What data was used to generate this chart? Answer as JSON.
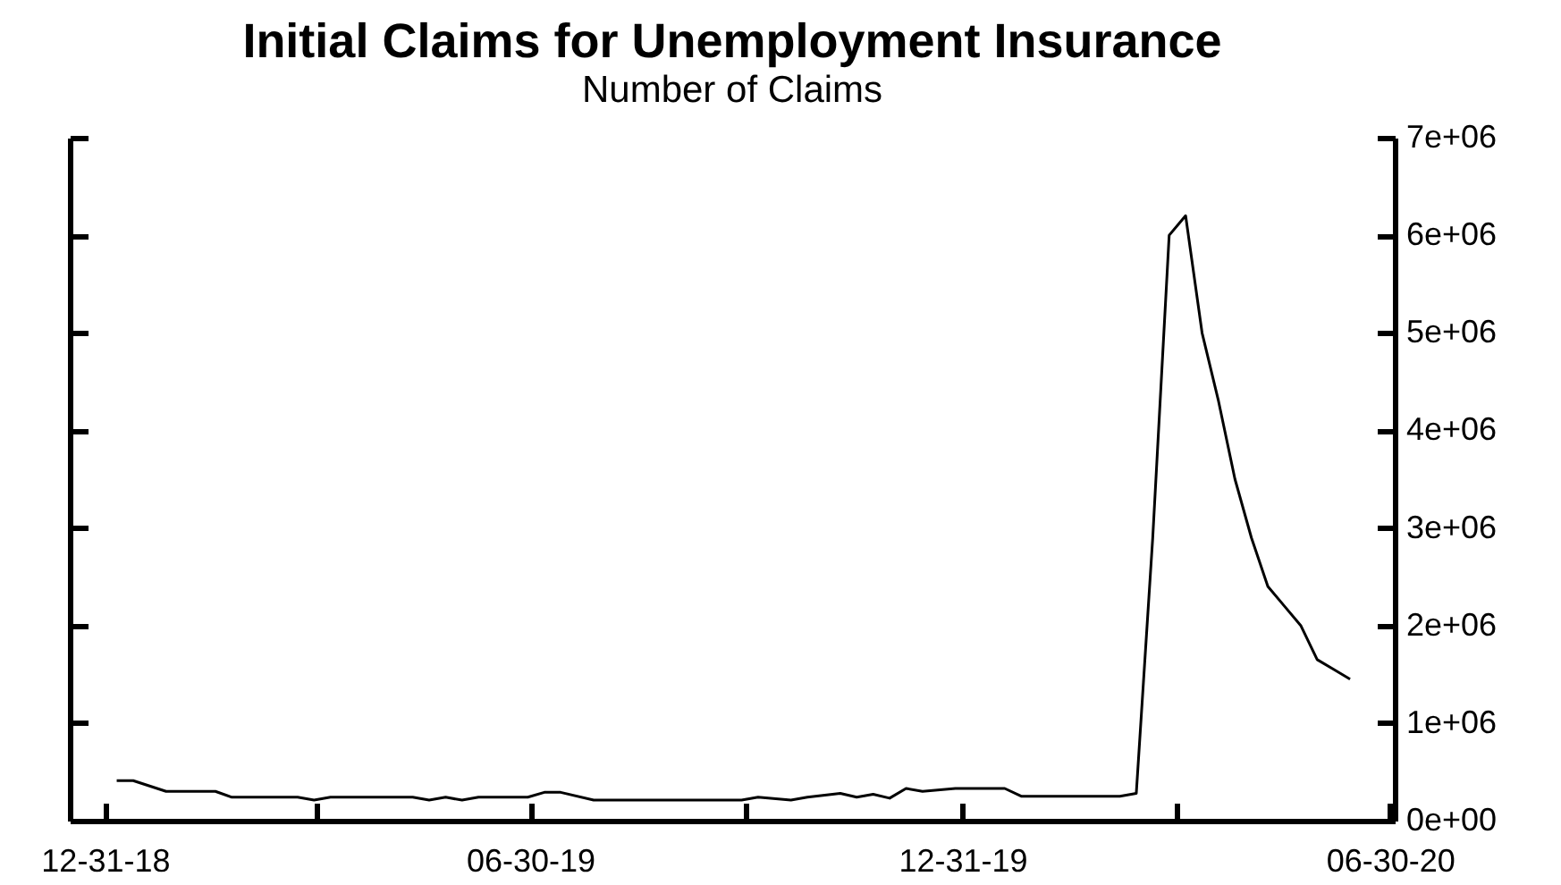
{
  "chart_data": {
    "type": "line",
    "title": "Initial Claims for Unemployment Insurance",
    "subtitle": "Number of Claims",
    "x": [
      "2019-01-05",
      "2019-01-12",
      "2019-01-26",
      "2019-02-16",
      "2019-02-23",
      "2019-03-23",
      "2019-03-30",
      "2019-04-06",
      "2019-05-11",
      "2019-05-18",
      "2019-05-25",
      "2019-06-01",
      "2019-06-08",
      "2019-06-29",
      "2019-07-06",
      "2019-07-13",
      "2019-07-27",
      "2019-09-28",
      "2019-10-05",
      "2019-10-19",
      "2019-10-26",
      "2019-11-09",
      "2019-11-16",
      "2019-11-23",
      "2019-11-30",
      "2019-12-07",
      "2019-12-14",
      "2019-12-28",
      "2020-01-18",
      "2020-01-25",
      "2020-03-07",
      "2020-03-14",
      "2020-03-21",
      "2020-03-28",
      "2020-04-04",
      "2020-04-11",
      "2020-04-18",
      "2020-04-25",
      "2020-05-02",
      "2020-05-09",
      "2020-05-16",
      "2020-05-23",
      "2020-05-30",
      "2020-06-06",
      "2020-06-13"
    ],
    "series": [
      {
        "color": "#000000",
        "values": [
          410000,
          410000,
          300000,
          300000,
          240000,
          240000,
          210000,
          240000,
          240000,
          210000,
          240000,
          210000,
          240000,
          240000,
          290000,
          290000,
          210000,
          210000,
          240000,
          210000,
          240000,
          280000,
          240000,
          270000,
          230000,
          330000,
          300000,
          330000,
          330000,
          250000,
          250000,
          280000,
          2900000,
          6000000,
          6200000,
          5000000,
          4300000,
          3500000,
          2900000,
          2400000,
          2200000,
          2000000,
          1650000,
          1550000,
          1450000
        ]
      }
    ],
    "xlim": [
      "2018-12-16",
      "2020-07-02"
    ],
    "xticks": [
      {
        "value": "2018-12-31",
        "label": "12-31-18"
      },
      {
        "value": "2019-03-31",
        "label": null
      },
      {
        "value": "2019-06-30",
        "label": "06-30-19"
      },
      {
        "value": "2019-09-30",
        "label": null
      },
      {
        "value": "2019-12-31",
        "label": "12-31-19"
      },
      {
        "value": "2020-03-31",
        "label": null
      },
      {
        "value": "2020-06-30",
        "label": "06-30-20"
      }
    ],
    "ylim": [
      0,
      7000000
    ],
    "yticks": [
      {
        "value": 0,
        "label": "0e+00"
      },
      {
        "value": 1000000,
        "label": "1e+06"
      },
      {
        "value": 2000000,
        "label": "2e+06"
      },
      {
        "value": 3000000,
        "label": "3e+06"
      },
      {
        "value": 4000000,
        "label": "4e+06"
      },
      {
        "value": 5000000,
        "label": "5e+06"
      },
      {
        "value": 6000000,
        "label": "6e+06"
      },
      {
        "value": 7000000,
        "label": "7e+06"
      }
    ],
    "grid": false,
    "marker": "none",
    "line_style": "solid"
  }
}
